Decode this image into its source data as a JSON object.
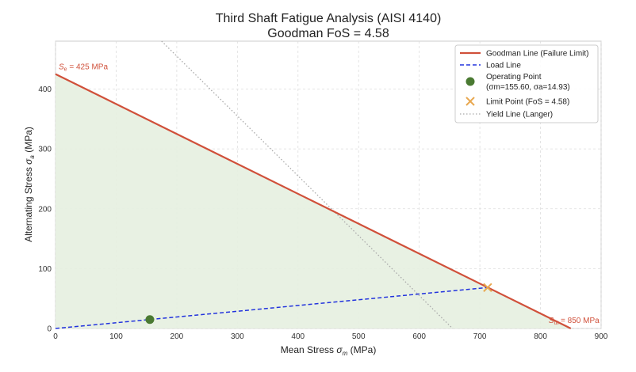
{
  "chart_data": {
    "type": "line",
    "title": "Third Shaft Fatigue Analysis (AISI 4140)",
    "subtitle": "Goodman FoS = 4.58",
    "xlabel": "Mean Stress σm (MPa)",
    "ylabel": "Alternating Stress σa (MPa)",
    "xlim": [
      0,
      900
    ],
    "ylim": [
      0,
      480
    ],
    "x_ticks": [
      0,
      100,
      200,
      300,
      400,
      500,
      600,
      700,
      800,
      900
    ],
    "y_ticks": [
      0,
      100,
      200,
      300,
      400
    ],
    "grid": true,
    "legend_position": "top-right",
    "colors": {
      "goodman": "#d0503a",
      "load": "#2233dd",
      "operating": "#4a7a32",
      "limit": "#e8a850",
      "yield": "#aaaaaa",
      "fill": "#e6efe0"
    },
    "series": [
      {
        "name": "Goodman Line (Failure Limit)",
        "kind": "line",
        "x": [
          0,
          850
        ],
        "y": [
          425,
          0
        ]
      },
      {
        "name": "Load Line",
        "kind": "dashed-line",
        "x": [
          0,
          712.8
        ],
        "y": [
          0,
          68.4
        ]
      },
      {
        "name": "Operating Point",
        "legend_detail": "(σm=155.60, σa=14.93)",
        "kind": "point",
        "x": [
          155.6
        ],
        "y": [
          14.93
        ]
      },
      {
        "name": "Limit Point (FoS = 4.58)",
        "kind": "cross",
        "x": [
          712.8
        ],
        "y": [
          68.4
        ]
      },
      {
        "name": "Yield Line (Langer)",
        "kind": "dotted-line",
        "x": [
          0,
          655
        ],
        "y": [
          655,
          0
        ]
      }
    ],
    "annotations": [
      {
        "text": "Se = 425 MPa",
        "x": 0,
        "y": 425
      },
      {
        "text": "Sut = 850 MPa",
        "x": 850,
        "y": 0
      }
    ]
  }
}
